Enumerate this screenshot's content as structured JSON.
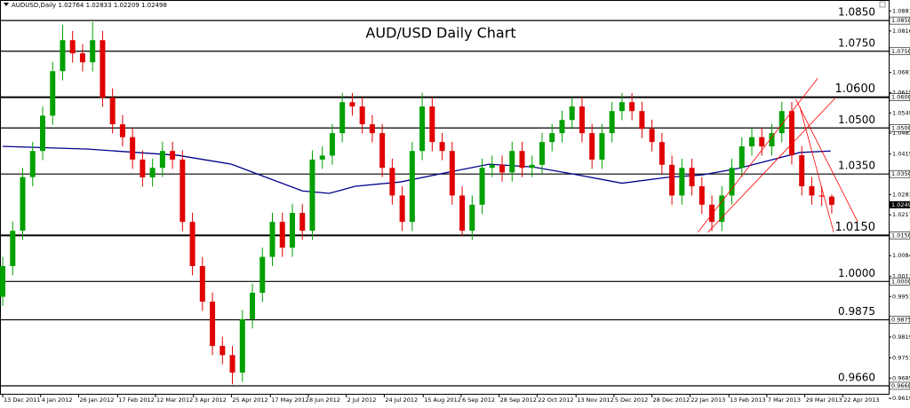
{
  "chart_data": {
    "type": "candlestick",
    "symbol": "AUDUSD,Daily",
    "title": "AUD/USD Daily Chart",
    "up_color": "#00a000",
    "down_color": "#e00000",
    "x": [
      0,
      1,
      2,
      3,
      4,
      5,
      6,
      7,
      8,
      9,
      10,
      11,
      12,
      13,
      14,
      15,
      16,
      17,
      18,
      19,
      20,
      21,
      22,
      23,
      24,
      25,
      26,
      27,
      28,
      29,
      30,
      31,
      32,
      33,
      34,
      35,
      36,
      37,
      38,
      39,
      40,
      41,
      42,
      43,
      44,
      45,
      46,
      47,
      48,
      49,
      50,
      51,
      52,
      53,
      54,
      55,
      56,
      57,
      58,
      59,
      60,
      61,
      62,
      63,
      64,
      65,
      66,
      67,
      68,
      69,
      70,
      71,
      72,
      73,
      74,
      75,
      76,
      77,
      78,
      79,
      80,
      81,
      82,
      83
    ],
    "open": [
      0.995,
      1.005,
      1.0165,
      1.034,
      1.0425,
      1.054,
      1.0685,
      1.0786,
      1.0743,
      1.0714,
      1.0786,
      1.0599,
      1.0512,
      1.047,
      1.0397,
      1.0339,
      1.037,
      1.0425,
      1.0397,
      1.0194,
      1.005,
      0.9934,
      0.979,
      0.976,
      0.9703,
      0.9877,
      0.9963,
      1.008,
      1.0194,
      1.011,
      1.0223,
      1.0165,
      1.0397,
      1.041,
      1.0483,
      1.0584,
      1.057,
      1.0512,
      1.0483,
      1.037,
      1.028,
      1.0194,
      1.0425,
      1.057,
      1.0454,
      1.0425,
      1.028,
      1.0165,
      1.025,
      1.037,
      1.038,
      1.0355,
      1.0425,
      1.037,
      1.038,
      1.0454,
      1.0483,
      1.0526,
      1.057,
      1.0483,
      1.0397,
      1.0483,
      1.0555,
      1.0584,
      1.0555,
      1.0497,
      1.0454,
      1.038,
      1.028,
      1.037,
      1.031,
      1.025,
      1.0194,
      1.028,
      1.037,
      1.044,
      1.047,
      1.044,
      1.0483,
      1.0555,
      1.0411,
      1.031,
      1.028,
      1.02764
    ],
    "high": [
      1.008,
      1.0195,
      1.037,
      1.0455,
      1.057,
      1.0715,
      1.0836,
      1.0816,
      1.0773,
      1.0845,
      1.0816,
      1.0629,
      1.0542,
      1.05,
      1.0427,
      1.04,
      1.0455,
      1.0455,
      1.0427,
      1.0224,
      1.008,
      0.9964,
      0.982,
      0.979,
      0.9907,
      0.9993,
      1.011,
      1.0224,
      1.0224,
      1.0253,
      1.0253,
      1.0427,
      1.044,
      1.0513,
      1.0614,
      1.0614,
      1.06,
      1.0542,
      1.0513,
      1.04,
      1.031,
      1.0455,
      1.0615,
      1.06,
      1.0484,
      1.0455,
      1.031,
      1.028,
      1.04,
      1.041,
      1.041,
      1.0455,
      1.0455,
      1.041,
      1.0484,
      1.0513,
      1.0556,
      1.06,
      1.06,
      1.0513,
      1.0513,
      1.0585,
      1.0614,
      1.0614,
      1.0585,
      1.0527,
      1.0484,
      1.041,
      1.04,
      1.04,
      1.034,
      1.028,
      1.031,
      1.04,
      1.047,
      1.05,
      1.05,
      1.0513,
      1.0585,
      1.0585,
      1.0441,
      1.034,
      1.031,
      1.02833
    ],
    "low": [
      0.992,
      1.002,
      1.0135,
      1.031,
      1.0395,
      1.051,
      1.0655,
      1.0713,
      1.0684,
      1.0684,
      1.0569,
      1.0482,
      1.044,
      1.0367,
      1.0309,
      1.0309,
      1.034,
      1.0367,
      1.0164,
      1.002,
      0.9904,
      0.976,
      0.973,
      0.9665,
      0.9673,
      0.9847,
      0.9933,
      1.005,
      1.008,
      1.008,
      1.0135,
      1.0135,
      1.0367,
      1.038,
      1.0453,
      1.054,
      1.0482,
      1.0453,
      1.034,
      1.025,
      1.0164,
      1.0164,
      1.0395,
      1.0424,
      1.0395,
      1.025,
      1.0148,
      1.0135,
      1.022,
      1.034,
      1.0325,
      1.0325,
      1.034,
      1.034,
      1.035,
      1.0424,
      1.0453,
      1.0496,
      1.0453,
      1.0367,
      1.0367,
      1.0453,
      1.0525,
      1.0525,
      1.0467,
      1.0424,
      1.035,
      1.025,
      1.025,
      1.028,
      1.022,
      1.0164,
      1.0164,
      1.025,
      1.034,
      1.041,
      1.041,
      1.041,
      1.0453,
      1.0381,
      1.028,
      1.025,
      1.0246,
      1.02209
    ],
    "close": [
      1.005,
      1.0165,
      1.034,
      1.0425,
      1.054,
      1.0685,
      1.0786,
      1.0743,
      1.0714,
      1.0786,
      1.0599,
      1.0512,
      1.047,
      1.0397,
      1.0339,
      1.037,
      1.0425,
      1.0397,
      1.0194,
      1.005,
      0.9934,
      0.979,
      0.976,
      0.9703,
      0.9877,
      0.9963,
      1.008,
      1.0194,
      1.011,
      1.0223,
      1.0165,
      1.0397,
      1.041,
      1.0483,
      1.0584,
      1.057,
      1.0512,
      1.0483,
      1.037,
      1.028,
      1.0194,
      1.0425,
      1.057,
      1.0454,
      1.0425,
      1.028,
      1.0165,
      1.025,
      1.037,
      1.038,
      1.0355,
      1.0425,
      1.037,
      1.038,
      1.0454,
      1.0483,
      1.0526,
      1.057,
      1.0483,
      1.0397,
      1.0483,
      1.0555,
      1.0584,
      1.0555,
      1.0497,
      1.0454,
      1.038,
      1.028,
      1.037,
      1.031,
      1.025,
      1.0194,
      1.028,
      1.037,
      1.044,
      1.047,
      1.044,
      1.0483,
      1.0555,
      1.0411,
      1.031,
      1.028,
      1.02764,
      1.02498
    ],
    "moving_average": {
      "color": "#00008b",
      "x": [
        0,
        8.6,
        17.5,
        22.9,
        26.4,
        30,
        32.7,
        35.3,
        39.8,
        44.2,
        48.7,
        53.1,
        57.6,
        62,
        66.5,
        70,
        73.6,
        77.1,
        79.8,
        82.9
      ],
      "values": [
        1.044,
        1.0431,
        1.0411,
        1.0382,
        1.0339,
        1.0295,
        1.0287,
        1.031,
        1.0324,
        1.0353,
        1.0382,
        1.0373,
        1.0347,
        1.032,
        1.0339,
        1.0347,
        1.0368,
        1.0397,
        1.042,
        1.0425
      ]
    },
    "trendline_color": "#ff0000",
    "trendlines": [
      {
        "x": [
          69.6,
          81.6
        ],
        "y": [
          1.016,
          1.0662
        ]
      },
      {
        "x": [
          70.6,
          83.4
        ],
        "y": [
          1.016,
          1.0599
        ]
      },
      {
        "x": [
          79.4,
          85.6
        ],
        "y": [
          1.0593,
          1.0194
        ]
      },
      {
        "x": [
          79.8,
          83.2
        ],
        "y": [
          1.057,
          1.016
        ]
      }
    ],
    "levels": [
      {
        "value": 1.085,
        "label": "1.0850"
      },
      {
        "value": 1.075,
        "label": "1.0750"
      },
      {
        "value": 1.06,
        "label": "1.0600"
      },
      {
        "value": 1.05,
        "label": "1.0500"
      },
      {
        "value": 1.035,
        "label": "1.0350"
      },
      {
        "value": 1.015,
        "label": "1.0150"
      },
      {
        "value": 1.0,
        "label": "1.0000"
      },
      {
        "value": 0.9875,
        "label": "0.9875"
      },
      {
        "value": 0.966,
        "label": "0.9660"
      }
    ],
    "level_tags": [
      "1.08500",
      "1.07500",
      "1.06000",
      "1.05000",
      "1.03500",
      "1.01500",
      "1.00000",
      "0.98750",
      "0.96600"
    ],
    "level_styles": [
      "normal",
      "normal",
      "bold",
      "normal",
      "normal",
      "bold",
      "normal",
      "normal",
      "normal"
    ],
    "xlim": [
      -0.27,
      88.7
    ],
    "ylim": [
      0.9631,
      1.0888
    ],
    "xticks": [
      {
        "value": 0,
        "label": "13 Dec 2011"
      },
      {
        "value": 3.8,
        "label": "4 Jan 2012"
      },
      {
        "value": 7.6,
        "label": "26 Jan 2012"
      },
      {
        "value": 11.5,
        "label": "17 Feb 2012"
      },
      {
        "value": 15.3,
        "label": "12 Mar 2012"
      },
      {
        "value": 19.1,
        "label": "3 Apr 2012"
      },
      {
        "value": 22.9,
        "label": "25 Apr 2012"
      },
      {
        "value": 26.8,
        "label": "17 May 2012"
      },
      {
        "value": 30.6,
        "label": "8 Jun 2012"
      },
      {
        "value": 34.4,
        "label": "2 Jul 2012"
      },
      {
        "value": 38.2,
        "label": "24 Jul 2012"
      },
      {
        "value": 42.1,
        "label": "15 Aug 2012"
      },
      {
        "value": 45.9,
        "label": "6 Sep 2012"
      },
      {
        "value": 49.7,
        "label": "28 Sep 2012"
      },
      {
        "value": 53.5,
        "label": "22 Oct 2012"
      },
      {
        "value": 57.4,
        "label": "13 Nov 2012"
      },
      {
        "value": 61.2,
        "label": "5 Dec 2012"
      },
      {
        "value": 65,
        "label": "28 Dec 2012"
      },
      {
        "value": 68.8,
        "label": "22 Jan 2013"
      },
      {
        "value": 72.7,
        "label": "13 Feb 2013"
      },
      {
        "value": 76.5,
        "label": "7 Mar 2013"
      },
      {
        "value": 80.3,
        "label": "29 Mar 2013"
      },
      {
        "value": 84.1,
        "label": "22 Apr 2013"
      }
    ],
    "yticks": [
      {
        "value": 1.0881,
        "label": "1.08810"
      },
      {
        "value": 1.0816,
        "label": "1.08160"
      },
      {
        "value": 1.0681,
        "label": "1.06810"
      },
      {
        "value": 1.0615,
        "label": "1.06150"
      },
      {
        "value": 1.0549,
        "label": "1.05490"
      },
      {
        "value": 1.0483,
        "label": "1.04830"
      },
      {
        "value": 1.0415,
        "label": "1.04150"
      },
      {
        "value": 1.0283,
        "label": "1.02830"
      },
      {
        "value": 1.0217,
        "label": "1.02170"
      },
      {
        "value": 1.0084,
        "label": "1.00840"
      },
      {
        "value": 1.0017,
        "label": "1.00170"
      },
      {
        "value": 0.9951,
        "label": "0.99510"
      },
      {
        "value": 0.9819,
        "label": "0.98190"
      },
      {
        "value": 0.9751,
        "label": "0.97510"
      },
      {
        "value": 0.9685,
        "label": "0.96850"
      },
      {
        "value": 0.9619,
        "label": "0.96190"
      }
    ]
  }
}
